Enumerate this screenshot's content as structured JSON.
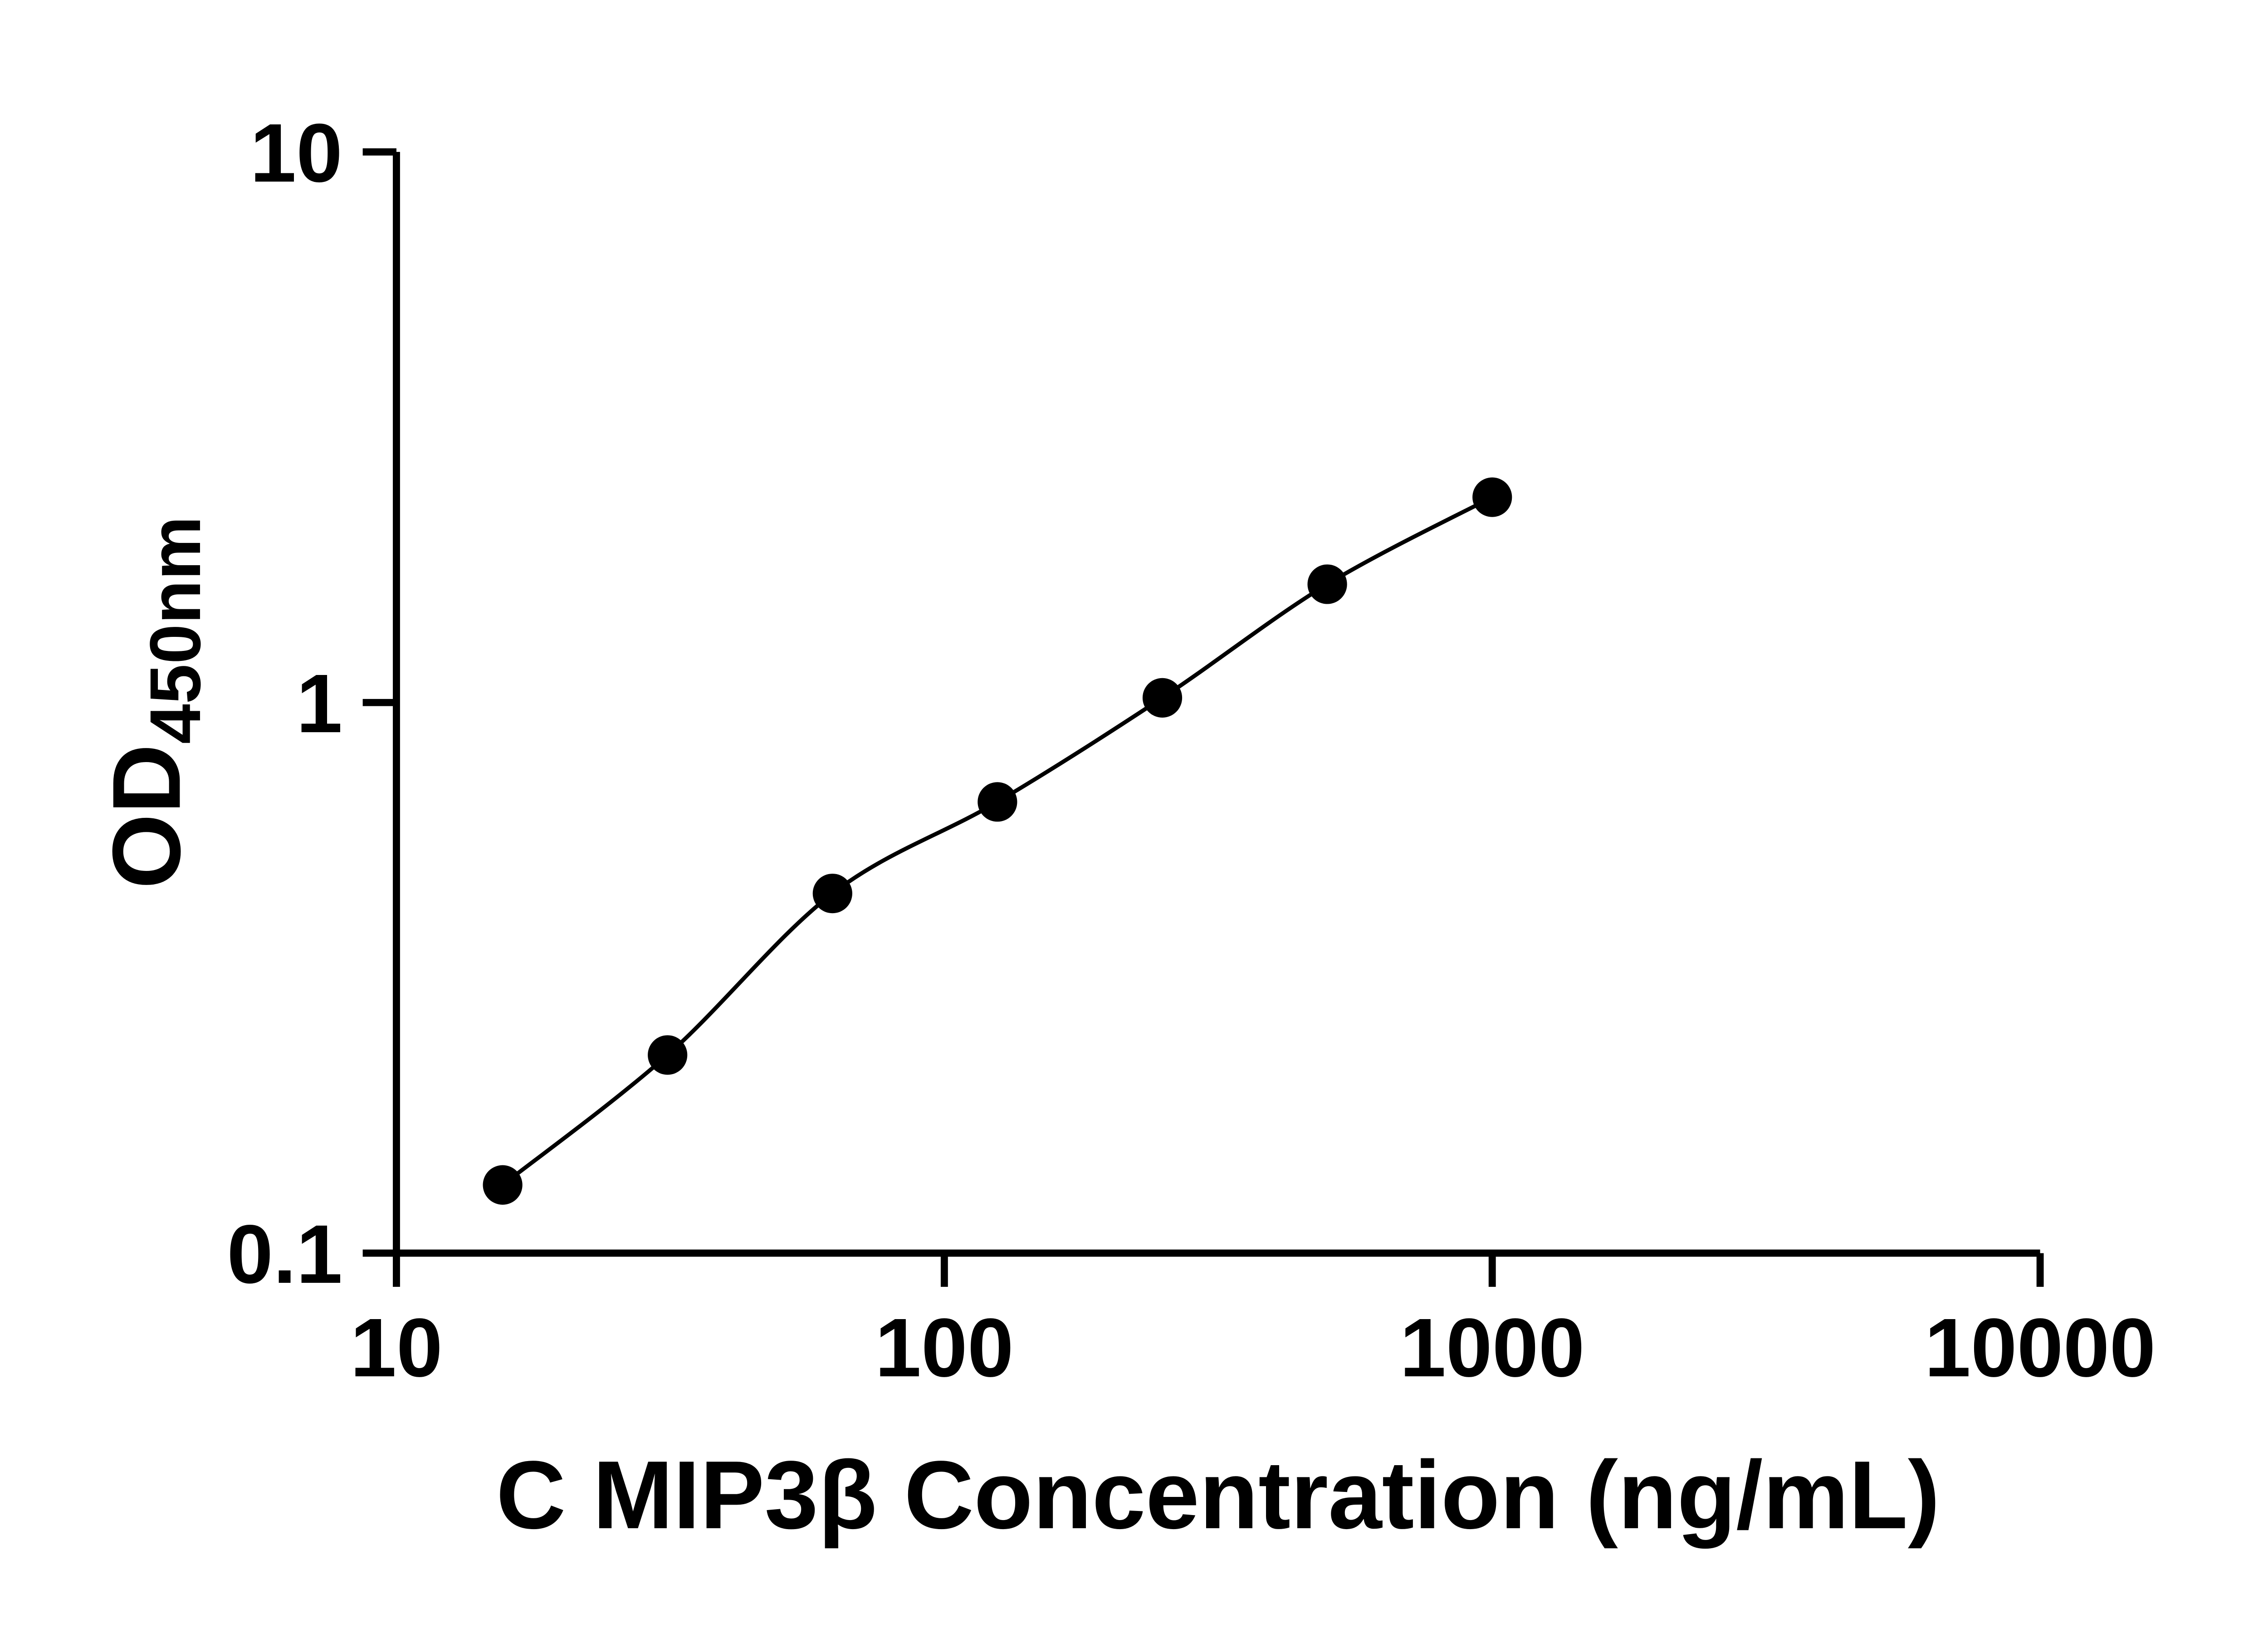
{
  "chart_data": {
    "type": "scatter",
    "series": [
      {
        "name": "standard-curve",
        "x": [
          15.625,
          31.25,
          62.5,
          125,
          250,
          500,
          1000
        ],
        "y": [
          0.133,
          0.229,
          0.45,
          0.66,
          1.02,
          1.64,
          2.36
        ]
      }
    ],
    "title": "",
    "xlabel": "C MIP3β Concentration (ng/mL)",
    "ylabel_main": "OD",
    "ylabel_sub": "450nm",
    "x_scale": "log10",
    "y_scale": "log10",
    "xlim": [
      10,
      10000
    ],
    "ylim": [
      0.1,
      10
    ],
    "x_ticks": [
      10,
      100,
      1000,
      10000
    ],
    "x_tick_labels": [
      "10",
      "100",
      "1000",
      "10000"
    ],
    "y_ticks": [
      0.1,
      1,
      10
    ],
    "y_tick_labels": [
      "0.1",
      "1",
      "10"
    ],
    "grid": false,
    "legend": false,
    "fit_line": true,
    "colors": {
      "axis": "#000000",
      "marker": "#000000",
      "line": "#000000",
      "background": "#ffffff",
      "text": "#000000"
    }
  }
}
